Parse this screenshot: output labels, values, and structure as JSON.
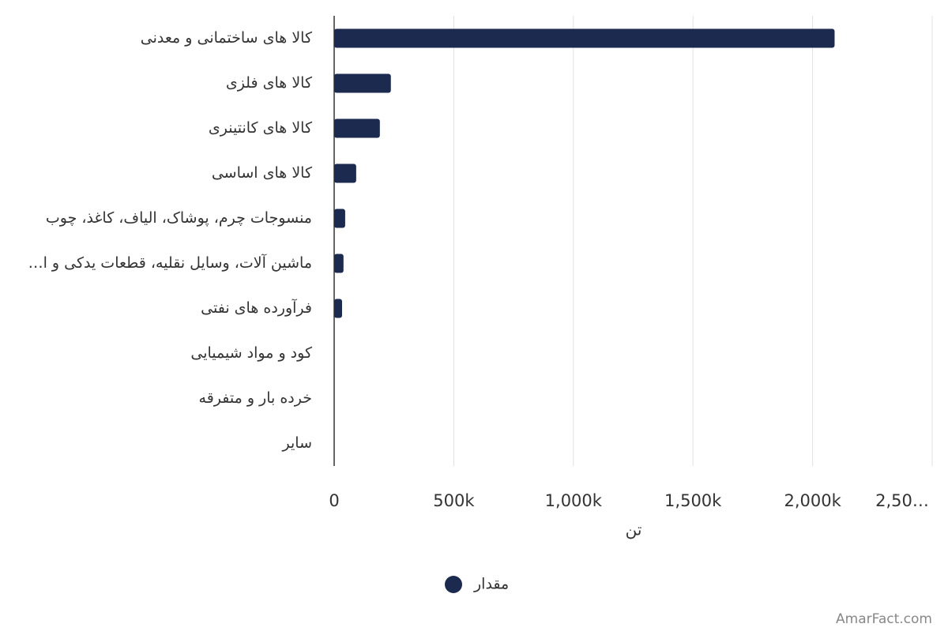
{
  "chart_data": {
    "type": "hbar",
    "categories": [
      "کالا های ساختمانی و معدنی",
      "کالا های فلزی",
      "کالا های کانتینری",
      "کالا های اساسی",
      "منسوجات چرم، پوشاک، الیاف، کاغذ، چوب",
      "ماشین آلات، وسایل نقلیه، قطعات یدکی و ا…",
      "فرآورده های نفتی",
      "کود و مواد شیمیایی",
      "خرده بار و متفرقه",
      "سایر"
    ],
    "series": [
      {
        "name": "مقدار",
        "color": "#1b2a4e",
        "values": [
          2092000,
          237000,
          191000,
          92000,
          46000,
          39000,
          33000,
          0,
          0,
          0
        ]
      }
    ],
    "xlim": [
      0,
      2500000
    ],
    "xticks": [
      0,
      {
        "value": 500000,
        "label": "500k"
      },
      {
        "value": 1000000,
        "label": "1,000k"
      },
      {
        "value": 1500000,
        "label": "1,500k"
      },
      {
        "value": 2000000,
        "label": "2,000k"
      },
      {
        "value": 2500000,
        "label": "2,50…"
      }
    ],
    "x_label": "تن",
    "grid": true,
    "legend": "bottom",
    "watermark": "AmarFact.com"
  }
}
